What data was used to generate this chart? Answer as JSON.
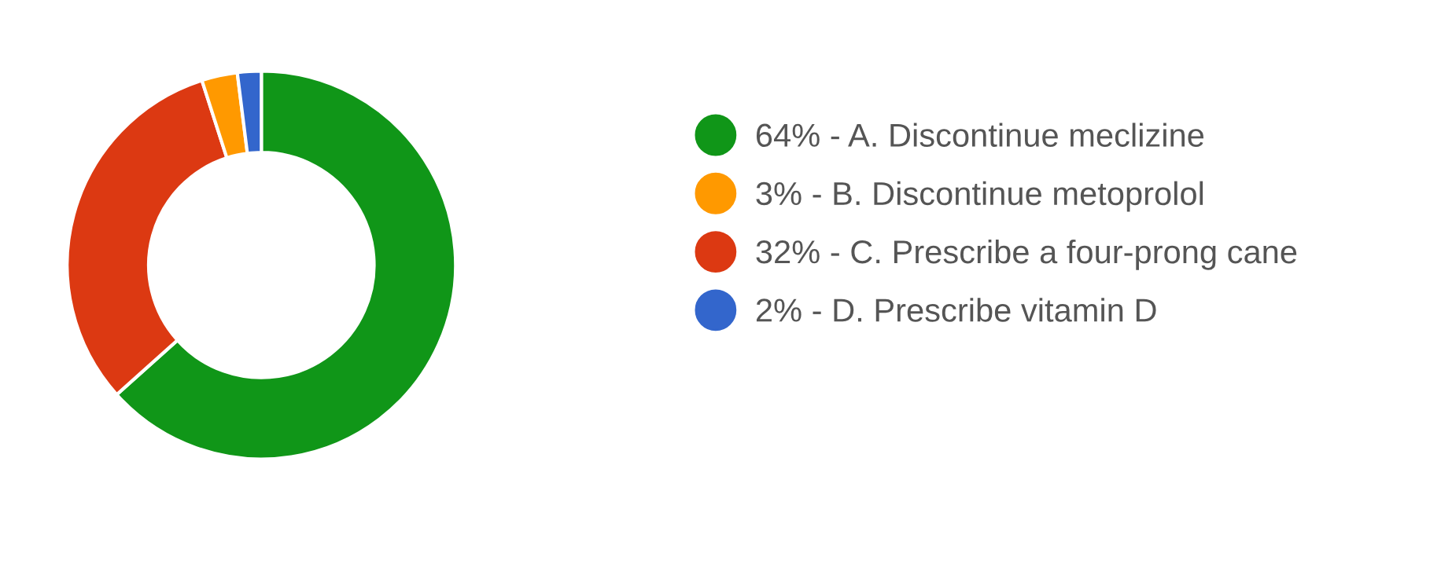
{
  "chart_data": {
    "type": "donut",
    "categories": [
      "64% - A. Discontinue meclizine",
      "3% - B. Discontinue metoprolol",
      "32% - C. Prescribe a four-prong cane",
      "2% - D. Prescribe vitamin D"
    ],
    "values": [
      64,
      3,
      32,
      2
    ],
    "colors": [
      "#109618",
      "#ff9900",
      "#dc3912",
      "#3366cc"
    ],
    "legend": "right"
  }
}
